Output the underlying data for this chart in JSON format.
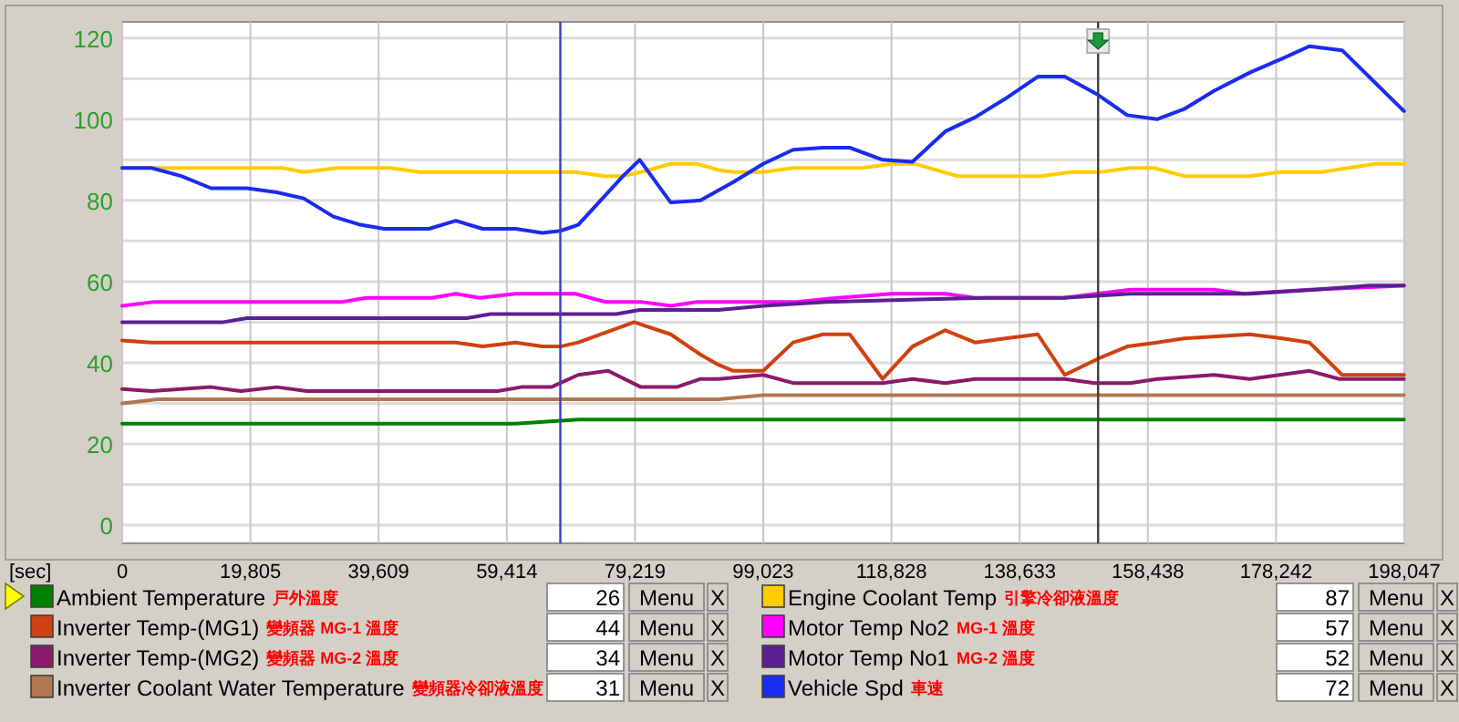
{
  "chart_data": {
    "type": "line",
    "xlabel": "[sec]",
    "xlim": [
      0,
      198047
    ],
    "xticks": [
      0,
      {
        "value": 19805,
        "label": "19,805"
      },
      {
        "value": 39609,
        "label": "39,609"
      },
      {
        "value": 59414,
        "label": "59,414"
      },
      {
        "value": 79219,
        "label": "79,219"
      },
      {
        "value": 99023,
        "label": "99,023"
      },
      {
        "value": 118828,
        "label": "118,828"
      },
      {
        "value": 138633,
        "label": "138,633"
      },
      {
        "value": 158438,
        "label": "158,438"
      },
      {
        "value": 178242,
        "label": "178,242"
      },
      {
        "value": 198047,
        "label": "198,047"
      }
    ],
    "ylim": [
      -4.5,
      124
    ],
    "yticks": [
      0,
      {
        "value": 10,
        "label": null
      },
      20,
      {
        "value": 30,
        "label": null
      },
      40,
      {
        "value": 50,
        "label": null
      },
      60,
      {
        "value": 70,
        "label": null
      },
      80,
      {
        "value": 90,
        "label": null
      },
      100,
      {
        "value": 110,
        "label": null
      },
      120
    ],
    "grid": true,
    "legend": "bottom",
    "line_style": "solid",
    "series": [
      {
        "name": "Ambient Temperature",
        "color": "#008000",
        "x": [
          0,
          60760,
          70450,
          198000
        ],
        "values": [
          25,
          25,
          26,
          26
        ]
      },
      {
        "name": "Inverter Temp-(MG1)",
        "color": "#d04010",
        "x": [
          0,
          4510,
          36790,
          40470,
          47380,
          51540,
          55680,
          60760,
          64910,
          67680,
          70450,
          79090,
          84730,
          89340,
          92110,
          94400,
          99020,
          103640,
          108240,
          112390,
          117470,
          122070,
          127150,
          131760,
          136360,
          141430,
          145590,
          150750,
          155260,
          159880,
          164030,
          174180,
          179240,
          183390,
          188450,
          198000
        ],
        "values": [
          45.5,
          45,
          45,
          45,
          45,
          45,
          44,
          45,
          44,
          44,
          45,
          50,
          47,
          42,
          39.5,
          38,
          38,
          45,
          47,
          47,
          36,
          44,
          48,
          45,
          46,
          47,
          37,
          41,
          44,
          45,
          46,
          47,
          46,
          45,
          37,
          37
        ]
      },
      {
        "name": "Inverter Temp-(MG2)",
        "color": "#8b1a6b",
        "x": [
          0,
          4510,
          13740,
          18360,
          23880,
          28510,
          57990,
          61680,
          66290,
          70450,
          75050,
          80130,
          85650,
          89340,
          92110,
          99020,
          103640,
          117470,
          122070,
          127150,
          131760,
          145590,
          150200,
          155720,
          159880,
          168640,
          174180,
          183390,
          188020,
          198000
        ],
        "values": [
          33.5,
          33,
          34,
          33,
          34,
          33,
          33,
          34,
          34,
          37,
          38,
          34,
          34,
          36,
          36,
          37,
          35,
          35,
          36,
          35,
          36,
          36,
          35,
          35,
          36,
          37,
          36,
          38,
          36,
          36
        ]
      },
      {
        "name": "Inverter Coolant Water Temperature",
        "color": "#b07850",
        "x": [
          0,
          5440,
          92110,
          99020,
          198000
        ],
        "values": [
          30,
          31,
          31,
          32,
          32
        ]
      },
      {
        "name": "Engine Coolant Temp",
        "color": "#ffcc00",
        "x": [
          0,
          24800,
          28030,
          33180,
          41400,
          46000,
          70000,
          74600,
          77360,
          80130,
          84730,
          88880,
          92110,
          94400,
          99020,
          103640,
          114240,
          118860,
          122540,
          129000,
          141900,
          146510,
          151120,
          155720,
          159410,
          164030,
          174180,
          178790,
          185230,
          193540,
          198000
        ],
        "values": [
          88,
          88,
          87,
          88,
          88,
          87,
          87,
          86,
          86,
          87,
          89,
          89,
          87.5,
          87,
          87,
          88,
          88,
          89,
          89,
          86,
          86,
          87,
          87,
          88,
          88,
          86,
          86,
          87,
          87,
          89,
          89
        ]
      },
      {
        "name": "Motor Temp No2",
        "color": "#ff00ff",
        "x": [
          0,
          4970,
          34020,
          37710,
          47840,
          51540,
          55220,
          60760,
          70000,
          74600,
          80130,
          84730,
          88880,
          92110,
          104100,
          110540,
          118860,
          127150,
          131760,
          145400,
          155720,
          168640,
          173250,
          183390,
          198000
        ],
        "values": [
          54,
          55,
          55,
          56,
          56,
          57,
          56,
          57,
          57,
          55,
          55,
          54,
          55,
          55,
          55,
          56,
          57,
          57,
          56,
          56,
          58,
          58,
          57,
          58,
          59
        ]
      },
      {
        "name": "Motor Temp No1",
        "color": "#5a2090",
        "x": [
          0,
          15590,
          19280,
          53230,
          56910,
          76280,
          79970,
          92110,
          99020,
          108700,
          133600,
          145400,
          155720,
          174180,
          184320,
          192620,
          198000
        ],
        "values": [
          50,
          50,
          51,
          51,
          52,
          52,
          53,
          53,
          54,
          55,
          56,
          56,
          57,
          57,
          58,
          59,
          59
        ]
      },
      {
        "name": "Vehicle Spd",
        "color": "#1a2cf0",
        "x": [
          0,
          4510,
          9130,
          13740,
          19280,
          23880,
          28030,
          32640,
          36790,
          40470,
          47380,
          51540,
          55680,
          60760,
          64910,
          67680,
          70450,
          77360,
          79940,
          84730,
          89340,
          92110,
          94400,
          99020,
          103640,
          108240,
          112390,
          117470,
          122070,
          127150,
          131760,
          136360,
          141430,
          145590,
          150750,
          155260,
          159880,
          164030,
          168640,
          174180,
          179240,
          183390,
          188450,
          193540,
          198000
        ],
        "values": [
          88,
          88,
          86,
          83,
          83,
          82,
          80.5,
          76,
          74,
          73,
          73,
          75,
          73,
          73,
          72,
          72.5,
          74,
          86,
          90,
          79.5,
          80,
          82.5,
          84.5,
          89,
          92.5,
          93,
          93,
          90,
          89.5,
          97,
          100.5,
          105,
          110.5,
          110.5,
          106,
          101,
          100,
          102.5,
          107,
          111.5,
          115,
          118,
          117,
          109,
          102
        ]
      }
    ],
    "ref_lines": [
      {
        "axis": "x",
        "value": 67680,
        "color": "#3c3cc8"
      },
      {
        "axis": "x",
        "value": 150750,
        "color": "#404040"
      }
    ],
    "annotations": [
      "戸外溫度",
      "變頻器 MG-1 溫度",
      "變頻器 MG-2 溫度",
      "變頻器冷卻液溫度",
      "引擎冷卻液溫度",
      "MG-1 溫度",
      "MG-2 溫度",
      "車速",
      "26",
      "44",
      "34",
      "31",
      "87",
      "57",
      "52",
      "72",
      "Menu",
      "X"
    ]
  }
}
